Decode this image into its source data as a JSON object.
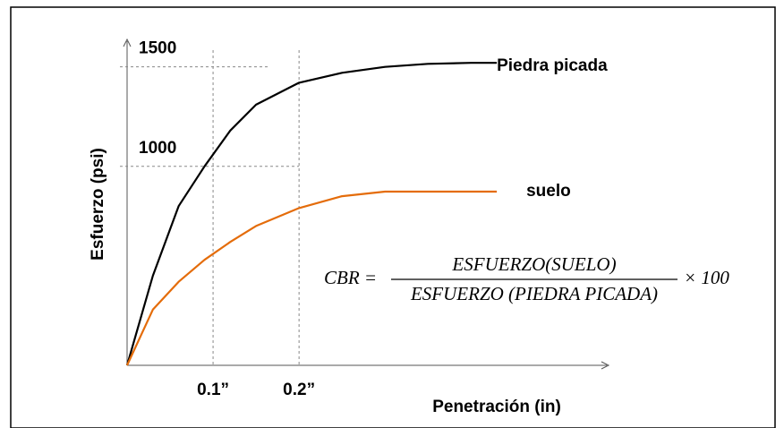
{
  "chart_data": {
    "type": "line",
    "x_label": "Penetración (in)",
    "y_label": "Esfuerzo (psi)",
    "x": [
      0,
      0.03,
      0.06,
      0.09,
      0.12,
      0.15,
      0.2,
      0.25,
      0.3,
      0.35,
      0.4,
      0.43
    ],
    "series": [
      {
        "name": "Piedra picada",
        "color": "#000000",
        "values": [
          0,
          450,
          800,
          1000,
          1180,
          1310,
          1420,
          1470,
          1500,
          1515,
          1520,
          1520
        ]
      },
      {
        "name": "suelo",
        "color": "#e46c0a",
        "values": [
          0,
          280,
          420,
          530,
          620,
          700,
          790,
          850,
          873,
          873,
          873,
          873
        ]
      }
    ],
    "xlim": [
      0,
      0.56
    ],
    "ylim": [
      0,
      1620
    ],
    "xticks": [
      {
        "value": 0.1,
        "label": "0.1”"
      },
      {
        "value": 0.2,
        "label": "0.2”"
      }
    ],
    "yticks": [
      1000,
      1500
    ],
    "grid": true,
    "annotation": {
      "lhs": "CBR =",
      "numerator": "ESFUERZO(SUELO)",
      "denominator": "ESFUERZO (PIEDRA PICADA)",
      "factor": "× 100"
    }
  }
}
